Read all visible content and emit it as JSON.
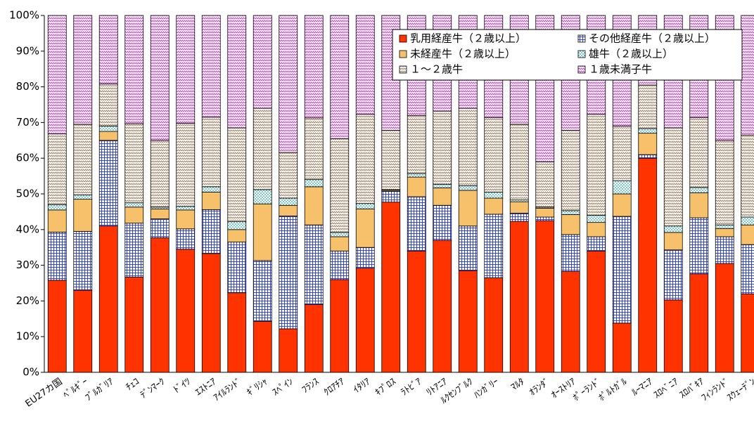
{
  "chart_data": {
    "type": "stacked_bar_100",
    "categories": [
      "EU27カ国",
      "ﾍﾞﾙｷﾞｰ",
      "ﾌﾞﾙｶﾞﾘｱ",
      "ﾁｪｺ",
      "ﾃﾞﾝﾏｰｸ",
      "ﾄﾞｲﾂ",
      "ｴｽﾄﾆｱ",
      "ｱｲﾙﾗﾝﾄﾞ",
      "ｷﾞﾘｼｬ",
      "ｽﾍﾟｲﾝ",
      "ﾌﾗﾝｽ",
      "ｸﾛｱﾁｱ",
      "ｲﾀﾘｱ",
      "ｷﾌﾟﾛｽ",
      "ﾗﾄﾋﾞｱ",
      "ﾘﾄｱﾆｱ",
      "ﾙｸｾﾝﾌﾞﾙｸ",
      "ﾊﾝｶﾞﾘｰ",
      "ﾏﾙﾀ",
      "ｵﾗﾝﾀﾞ",
      "ｵｰｽﾄﾘｱ",
      "ﾎﾟｰﾗﾝﾄﾞ",
      "ﾎﾟﾙﾄｶﾞﾙ",
      "ﾙｰﾏﾆｱ",
      "ｽﾛﾍﾞﾆｱ",
      "ｽﾛﾊﾞｷｱ",
      "ﾌｨﾝﾗﾝﾄﾞ",
      "ｽｳｪｰﾃﾞﾝ"
    ],
    "series": [
      {
        "name": "乳用経産牛（２歳以上）",
        "color": "#ff3300",
        "fill": "solid",
        "values": [
          25.8,
          23,
          41,
          26.7,
          37.7,
          34.5,
          33.3,
          22.3,
          14.3,
          12.2,
          19,
          26,
          29.2,
          47.7,
          34,
          37,
          28.5,
          26.5,
          42.3,
          42.5,
          28.3,
          34,
          13.8,
          60,
          20.3,
          27.6,
          30.5,
          22
        ]
      },
      {
        "name": "その他経産牛（２歳以上）",
        "color": "#3344dd",
        "fill": "grid",
        "values": [
          13.5,
          16.5,
          24,
          15.1,
          5.3,
          5.7,
          12.3,
          14.2,
          17,
          31.6,
          22.3,
          8,
          5.8,
          3,
          15.2,
          9.8,
          12.5,
          17.8,
          2.3,
          1,
          10.3,
          4,
          29.9,
          1,
          14,
          15.7,
          7.5,
          13.8
        ]
      },
      {
        "name": "未経産牛（２歳以上）",
        "color": "#f7c06a",
        "fill": "solid",
        "values": [
          6.2,
          9,
          2.5,
          4.5,
          2.8,
          5.3,
          4.9,
          3.5,
          15.9,
          3,
          10.7,
          4,
          10.8,
          0.3,
          5.5,
          4.9,
          10,
          4.5,
          3.2,
          2.5,
          5.6,
          4,
          6.3,
          6,
          4.9,
          7,
          2.3,
          5.5
        ]
      },
      {
        "name": "雄牛（２歳以上）",
        "color": "#2aa6a6",
        "fill": "dots",
        "values": [
          1.5,
          1.2,
          1.5,
          1.2,
          0.5,
          1,
          1.5,
          2.2,
          4,
          2,
          2,
          1.2,
          1.5,
          0.2,
          1,
          1,
          1.3,
          1.7,
          0.5,
          0.3,
          1.1,
          2,
          3.7,
          1.3,
          1.8,
          1.5,
          1,
          2.2
        ]
      },
      {
        "name": "１～２歳牛",
        "color": "#9a7a5a",
        "fill": "zigzag",
        "values": [
          19.8,
          19.8,
          11.8,
          22.2,
          18.7,
          23.3,
          19.5,
          26.3,
          22.8,
          12.8,
          17.3,
          26.3,
          25,
          16.6,
          16.3,
          20.5,
          21.7,
          20.9,
          21.2,
          12.7,
          22.5,
          28.3,
          15.3,
          12.2,
          27.5,
          19.6,
          23.7,
          23
        ]
      },
      {
        "name": "１歳未満子牛",
        "color": "#cc33cc",
        "fill": "zigzag",
        "values": [
          33.2,
          30.5,
          19.2,
          30.3,
          35,
          30.2,
          28.5,
          31.5,
          26,
          38.4,
          28.7,
          34.5,
          27.7,
          32.2,
          28,
          26.8,
          26,
          28.6,
          30.5,
          41,
          32.2,
          27.7,
          31,
          19.5,
          31.5,
          28.6,
          35,
          33.5
        ]
      }
    ],
    "ylim": [
      0,
      100
    ],
    "yticks": [
      {
        "value": 0,
        "label": "0%"
      },
      {
        "value": 10,
        "label": "10%"
      },
      {
        "value": 20,
        "label": "20%"
      },
      {
        "value": 30,
        "label": "30%"
      },
      {
        "value": 40,
        "label": "40%"
      },
      {
        "value": 50,
        "label": "50%"
      },
      {
        "value": 60,
        "label": "60%"
      },
      {
        "value": 70,
        "label": "70%"
      },
      {
        "value": 80,
        "label": "80%"
      },
      {
        "value": 90,
        "label": "90%"
      },
      {
        "value": 100,
        "label": "100%"
      }
    ],
    "legend": "top-right"
  }
}
